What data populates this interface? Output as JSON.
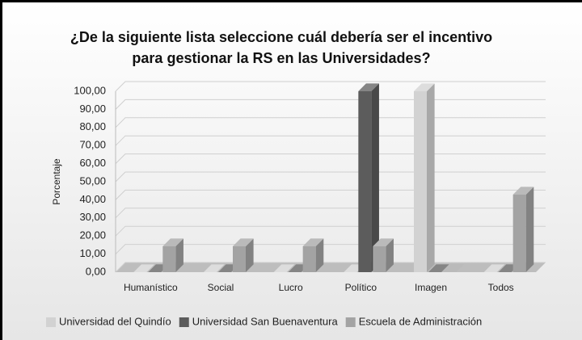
{
  "chart_data": {
    "type": "bar3d",
    "title": [
      "¿De la siguiente lista seleccione cuál debería ser el incentivo",
      "para gestionar la RS en las Universidades?"
    ],
    "y_axis_label": "Porcentaje",
    "categories": [
      "Humanístico",
      "Social",
      "Lucro",
      "Político",
      "Imagen",
      "Todos"
    ],
    "series": [
      {
        "name": "Universidad del Quindío",
        "color": "#d2d2d2",
        "values": [
          0,
          0,
          0,
          0,
          100,
          0
        ]
      },
      {
        "name": "Universidad San Buenaventura",
        "color": "#5c5c5c",
        "values": [
          0,
          0,
          0,
          100,
          0,
          0
        ]
      },
      {
        "name": "Escuela de Administración",
        "color": "#a3a3a3",
        "values": [
          14.29,
          14.29,
          14.29,
          14.29,
          0,
          42.86
        ]
      }
    ],
    "ylim": [
      0,
      100
    ],
    "yticks": [
      {
        "value": 0,
        "label": "0,00"
      },
      {
        "value": 10,
        "label": "10,00"
      },
      {
        "value": 20,
        "label": "20,00"
      },
      {
        "value": 30,
        "label": "30,00"
      },
      {
        "value": 40,
        "label": "40,00"
      },
      {
        "value": 50,
        "label": "50,00"
      },
      {
        "value": 60,
        "label": "60,00"
      },
      {
        "value": 70,
        "label": "70,00"
      },
      {
        "value": 80,
        "label": "80,00"
      },
      {
        "value": 90,
        "label": "90,00"
      },
      {
        "value": 100,
        "label": "100,00"
      }
    ],
    "grid": true,
    "legend": "bottom"
  }
}
